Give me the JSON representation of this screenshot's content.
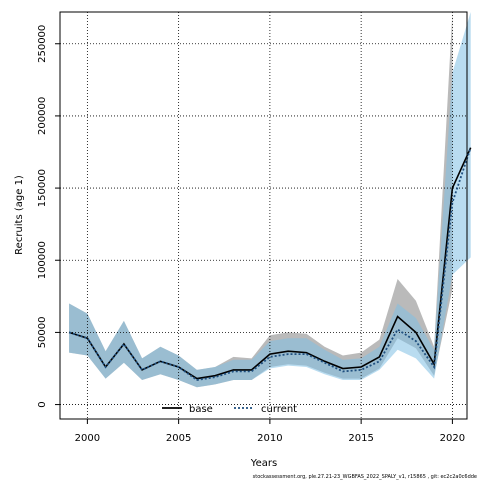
{
  "chart_data": {
    "type": "line",
    "xlabel": "Years",
    "ylabel": "Recruits (age 1)",
    "xlim": [
      1998.5,
      2020.8
    ],
    "ylim": [
      -10000,
      272000
    ],
    "x_ticks": [
      2000,
      2005,
      2010,
      2015,
      2020
    ],
    "y_ticks": [
      0,
      50000,
      100000,
      150000,
      200000,
      250000
    ],
    "x_tick_labels": [
      "2000",
      "2005",
      "2010",
      "2015",
      "2020"
    ],
    "y_tick_labels": [
      "0",
      "50000",
      "100000",
      "150000",
      "200000",
      "250000"
    ],
    "grid": true,
    "legend_position": "bottom-left",
    "x": [
      1999,
      2000,
      2001,
      2002,
      2003,
      2004,
      2005,
      2006,
      2007,
      2008,
      2009,
      2010,
      2011,
      2012,
      2013,
      2014,
      2015,
      2016,
      2017,
      2018,
      2019,
      2020,
      2021
    ],
    "series": [
      {
        "name": "base",
        "color": "#000000",
        "linestyle": "solid",
        "band_color": "#8c8c8c",
        "values": [
          50000,
          46000,
          26000,
          42000,
          24000,
          30000,
          26000,
          18000,
          20000,
          24000,
          24000,
          35000,
          37000,
          36000,
          30000,
          25000,
          26000,
          33000,
          61000,
          50000,
          28000,
          150000,
          178000
        ],
        "lower": [
          36000,
          34000,
          18000,
          29000,
          17000,
          21000,
          17000,
          12000,
          14000,
          17000,
          17000,
          26000,
          28000,
          27000,
          22000,
          18000,
          18000,
          25000,
          46000,
          39000,
          20000,
          80000,
          null
        ],
        "upper": [
          70000,
          63000,
          37000,
          58000,
          32000,
          40000,
          34000,
          24000,
          26000,
          33000,
          32000,
          48000,
          50000,
          49000,
          40000,
          34000,
          36000,
          45000,
          87000,
          72000,
          40000,
          272000,
          null
        ]
      },
      {
        "name": "current",
        "color": "#1f4f7f",
        "linestyle": "dotted",
        "band_color": "#7fbfe3",
        "values": [
          50000,
          46000,
          26000,
          42000,
          24000,
          30000,
          26000,
          17000,
          19000,
          23000,
          23000,
          33000,
          35000,
          35000,
          29000,
          23000,
          24000,
          30000,
          52000,
          44000,
          26000,
          140000,
          178000
        ],
        "lower": [
          36000,
          34000,
          18000,
          29000,
          17000,
          21000,
          17000,
          12000,
          14000,
          17000,
          17000,
          25000,
          27000,
          26000,
          21000,
          17000,
          17000,
          24000,
          38000,
          32000,
          18000,
          90000,
          102000
        ],
        "upper": [
          70000,
          63000,
          37000,
          58000,
          32000,
          40000,
          34000,
          24000,
          26000,
          31000,
          31000,
          44000,
          46000,
          46000,
          38000,
          31000,
          32000,
          40000,
          70000,
          60000,
          38000,
          230000,
          272000
        ]
      }
    ]
  },
  "footnote": "stockassessment.org, ple.27.21-23_WGBFAS_2022_SPALY_v1, r15865 , git: ec2c2a0c6dde"
}
